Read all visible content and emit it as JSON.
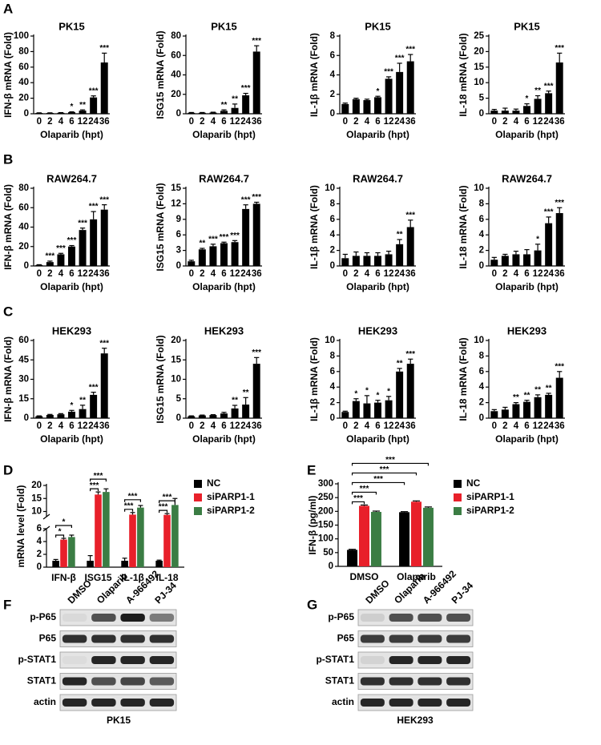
{
  "panels": [
    "A",
    "B",
    "C",
    "D",
    "E",
    "F",
    "G"
  ],
  "chart_data": [
    {
      "type": "bar",
      "title": "PK15",
      "ylabel": "IFN-β mRNA (Fold)",
      "xlabel": "Olaparib (hpt)",
      "categories": [
        "0",
        "2",
        "4",
        "6",
        "12",
        "24",
        "36"
      ],
      "values": [
        1,
        1,
        1.2,
        2,
        4,
        21,
        66
      ],
      "errors": [
        0.2,
        0.2,
        0.3,
        0.5,
        1,
        2,
        12
      ],
      "stars": [
        null,
        null,
        null,
        "*",
        "**",
        "***",
        "***"
      ],
      "color": "#000000",
      "ylim": [
        0,
        100
      ],
      "yticks": [
        0,
        20,
        40,
        60,
        80,
        100
      ]
    },
    {
      "type": "bar",
      "title": "PK15",
      "ylabel": "ISG15 mRNA (Fold)",
      "xlabel": "Olaparib (hpt)",
      "categories": [
        "0",
        "2",
        "4",
        "6",
        "12",
        "24",
        "36"
      ],
      "values": [
        1,
        1,
        1.2,
        3,
        6,
        19,
        64
      ],
      "errors": [
        0.3,
        0.3,
        0.4,
        1,
        4,
        2,
        6
      ],
      "stars": [
        null,
        null,
        null,
        "**",
        "**",
        "***",
        "***"
      ],
      "color": "#000000",
      "ylim": [
        0,
        80
      ],
      "yticks": [
        0,
        20,
        40,
        60,
        80
      ]
    },
    {
      "type": "bar",
      "title": "PK15",
      "ylabel": "IL-1β  mRNA (Fold)",
      "xlabel": "Olaparib (hpt)",
      "categories": [
        "0",
        "2",
        "4",
        "6",
        "12",
        "24",
        "36"
      ],
      "values": [
        1,
        1.5,
        1.4,
        1.7,
        3.6,
        4.3,
        5.4
      ],
      "errors": [
        0.1,
        0.1,
        0.1,
        0.1,
        0.2,
        0.9,
        0.7
      ],
      "stars": [
        null,
        null,
        null,
        "*",
        "***",
        "***",
        "***"
      ],
      "color": "#000000",
      "ylim": [
        0,
        8
      ],
      "yticks": [
        0,
        2,
        4,
        6,
        8
      ]
    },
    {
      "type": "bar",
      "title": "PK15",
      "ylabel": "IL-18 mRNA (Fold)",
      "xlabel": "Olaparib (hpt)",
      "categories": [
        "0",
        "2",
        "4",
        "6",
        "12",
        "24",
        "36"
      ],
      "values": [
        1,
        1,
        1,
        2.5,
        4.8,
        6.6,
        16.5
      ],
      "errors": [
        0.4,
        0.8,
        0.5,
        0.7,
        1,
        0.7,
        3
      ],
      "stars": [
        null,
        null,
        null,
        "*",
        "**",
        "***",
        "***"
      ],
      "color": "#000000",
      "ylim": [
        0,
        25
      ],
      "yticks": [
        0,
        5,
        10,
        15,
        20,
        25
      ]
    },
    {
      "type": "bar",
      "title": "RAW264.7",
      "ylabel": "IFN-β mRNA (Fold)",
      "xlabel": "Olaparib (hpt)",
      "categories": [
        "0",
        "2",
        "4",
        "6",
        "12",
        "24",
        "36"
      ],
      "values": [
        1,
        4,
        12,
        20,
        37,
        48,
        58
      ],
      "errors": [
        0.3,
        1,
        1,
        1,
        2,
        8,
        5
      ],
      "stars": [
        null,
        "***",
        "***",
        "***",
        "***",
        "***",
        "***"
      ],
      "color": "#000000",
      "ylim": [
        0,
        80
      ],
      "yticks": [
        0,
        20,
        40,
        60,
        80
      ]
    },
    {
      "type": "bar",
      "title": "RAW264.7",
      "ylabel": "ISG15 mRNA (Fold)",
      "xlabel": "Olaparib (hpt)",
      "categories": [
        "0",
        "2",
        "4",
        "6",
        "12",
        "24",
        "36"
      ],
      "values": [
        0.9,
        3.2,
        3.8,
        4.4,
        4.6,
        11,
        12
      ],
      "errors": [
        0.2,
        0.2,
        0.4,
        0.2,
        0.3,
        0.8,
        0.3
      ],
      "stars": [
        null,
        "**",
        "***",
        "***",
        "***",
        "***",
        "***"
      ],
      "color": "#000000",
      "ylim": [
        0,
        15
      ],
      "yticks": [
        0,
        3,
        6,
        9,
        12,
        15
      ]
    },
    {
      "type": "bar",
      "title": "RAW264.7",
      "ylabel": "IL-1β  mRNA (Fold)",
      "xlabel": "Olaparib (hpt)",
      "categories": [
        "0",
        "2",
        "4",
        "6",
        "12",
        "24",
        "36"
      ],
      "values": [
        1,
        1.3,
        1.3,
        1.3,
        1.5,
        2.8,
        5
      ],
      "errors": [
        0.5,
        0.5,
        0.4,
        0.4,
        0.4,
        0.6,
        0.9
      ],
      "stars": [
        null,
        null,
        null,
        null,
        null,
        "**",
        "***"
      ],
      "color": "#000000",
      "ylim": [
        0,
        10
      ],
      "yticks": [
        0,
        2,
        4,
        6,
        8,
        10
      ]
    },
    {
      "type": "bar",
      "title": "RAW264.7",
      "ylabel": "IL-18 mRNA (Fold)",
      "xlabel": "Olaparib (hpt)",
      "categories": [
        "0",
        "2",
        "4",
        "6",
        "12",
        "24",
        "36"
      ],
      "values": [
        0.8,
        1.3,
        1.5,
        1.5,
        2,
        5.5,
        6.8
      ],
      "errors": [
        0.3,
        0.2,
        0.4,
        0.6,
        0.8,
        0.8,
        0.7
      ],
      "stars": [
        null,
        null,
        null,
        null,
        "*",
        "***",
        "***"
      ],
      "color": "#000000",
      "ylim": [
        0,
        10
      ],
      "yticks": [
        0,
        2,
        4,
        6,
        8,
        10
      ]
    },
    {
      "type": "bar",
      "title": "HEK293",
      "ylabel": "IFN-β mRNA (Fold)",
      "xlabel": "Olaparib (hpt)",
      "categories": [
        "0",
        "2",
        "4",
        "6",
        "12",
        "24",
        "36"
      ],
      "values": [
        1.5,
        2.5,
        3,
        5,
        7,
        18,
        50
      ],
      "errors": [
        0.3,
        0.4,
        0.5,
        1,
        3,
        2,
        4
      ],
      "stars": [
        null,
        null,
        null,
        "*",
        "**",
        "***",
        "***"
      ],
      "color": "#000000",
      "ylim": [
        0,
        60
      ],
      "yticks": [
        0,
        15,
        30,
        45,
        60
      ]
    },
    {
      "type": "bar",
      "title": "HEK293",
      "ylabel": "ISG15 mRNA (Fold)",
      "xlabel": "Olaparib (hpt)",
      "categories": [
        "0",
        "2",
        "4",
        "6",
        "12",
        "24",
        "36"
      ],
      "values": [
        0.5,
        0.7,
        0.8,
        1.2,
        2.5,
        3.5,
        14
      ],
      "errors": [
        0.1,
        0.1,
        0.1,
        0.3,
        0.8,
        1.8,
        1.6
      ],
      "stars": [
        null,
        null,
        null,
        null,
        "**",
        "**",
        "***"
      ],
      "color": "#000000",
      "ylim": [
        0,
        20
      ],
      "yticks": [
        0,
        5,
        10,
        15,
        20
      ]
    },
    {
      "type": "bar",
      "title": "HEK293",
      "ylabel": "IL-1β mRNA (Fold)",
      "xlabel": "Olaparib (hpt)",
      "categories": [
        "0",
        "2",
        "4",
        "6",
        "12",
        "24",
        "36"
      ],
      "values": [
        0.8,
        2.2,
        1.9,
        2,
        2.3,
        6,
        7
      ],
      "errors": [
        0.1,
        0.3,
        1,
        0.3,
        0.5,
        0.4,
        0.6
      ],
      "stars": [
        null,
        "*",
        "*",
        "*",
        "*",
        "**",
        "***"
      ],
      "color": "#000000",
      "ylim": [
        0,
        10
      ],
      "yticks": [
        0,
        2,
        4,
        6,
        8,
        10
      ]
    },
    {
      "type": "bar",
      "title": "HEK293",
      "ylabel": "IL-18 mRNA (Fold)",
      "xlabel": "Olaparib (hpt)",
      "categories": [
        "0",
        "2",
        "4",
        "6",
        "12",
        "24",
        "36"
      ],
      "values": [
        0.9,
        1.1,
        1.8,
        2.1,
        2.7,
        3,
        5.2
      ],
      "errors": [
        0.2,
        0.3,
        0.2,
        0.2,
        0.3,
        0.2,
        0.8
      ],
      "stars": [
        null,
        null,
        "**",
        "**",
        "**",
        "**",
        "***"
      ],
      "color": "#000000",
      "ylim": [
        0,
        10
      ],
      "yticks": [
        0,
        2,
        4,
        6,
        8,
        10
      ]
    },
    {
      "type": "groupedbar",
      "ylabel": "mRNA  level (Fold)",
      "categories": [
        "IFN-β",
        "ISG15",
        "IL-1β",
        "IL-18"
      ],
      "series": [
        {
          "name": "NC",
          "color": "#000000",
          "values": [
            1,
            1,
            1,
            1
          ],
          "errors": [
            0.2,
            0.8,
            0.4,
            0.1
          ]
        },
        {
          "name": "siPARP1-1",
          "color": "#e8202a",
          "values": [
            4.3,
            16.5,
            8.8,
            8.7
          ],
          "errors": [
            0.2,
            1,
            0.8,
            0.5
          ]
        },
        {
          "name": "siPARP1-2",
          "color": "#3b7d44",
          "values": [
            4.7,
            17.5,
            11.5,
            12.5
          ],
          "errors": [
            0.3,
            1.2,
            0.8,
            2.5
          ]
        }
      ],
      "brackets": [
        {
          "from": [
            0,
            0
          ],
          "to": [
            0,
            1
          ],
          "label": "*"
        },
        {
          "from": [
            0,
            0
          ],
          "to": [
            0,
            2
          ],
          "label": "*"
        },
        {
          "from": [
            1,
            0
          ],
          "to": [
            1,
            1
          ],
          "label": "***"
        },
        {
          "from": [
            1,
            0
          ],
          "to": [
            1,
            2
          ],
          "label": "***"
        },
        {
          "from": [
            2,
            0
          ],
          "to": [
            2,
            1
          ],
          "label": "***"
        },
        {
          "from": [
            2,
            0
          ],
          "to": [
            2,
            2
          ],
          "label": "***"
        },
        {
          "from": [
            3,
            0
          ],
          "to": [
            3,
            1
          ],
          "label": "***"
        },
        {
          "from": [
            3,
            0
          ],
          "to": [
            3,
            2
          ],
          "label": "***"
        }
      ],
      "ylim": [
        0,
        20
      ],
      "ybreak": [
        6,
        8
      ],
      "yticks": [
        0,
        2,
        4,
        6,
        10,
        15,
        20
      ],
      "legend": "right"
    },
    {
      "type": "groupedbar",
      "ylabel": "IFN-β (pg/ml)",
      "categories": [
        "DMSO",
        "Olaparib"
      ],
      "series": [
        {
          "name": "NC",
          "color": "#000000",
          "values": [
            60,
            197
          ],
          "errors": [
            2,
            2
          ]
        },
        {
          "name": "siPARP1-1",
          "color": "#e8202a",
          "values": [
            220,
            235
          ],
          "errors": [
            3,
            3
          ]
        },
        {
          "name": "siPARP1-2",
          "color": "#3b7d44",
          "values": [
            198,
            213
          ],
          "errors": [
            3,
            3
          ]
        }
      ],
      "brackets": [
        {
          "from": [
            0,
            0
          ],
          "to": [
            0,
            1
          ],
          "label": "***"
        },
        {
          "from": [
            0,
            0
          ],
          "to": [
            0,
            2
          ],
          "label": "***"
        },
        {
          "from": [
            0,
            0
          ],
          "to": [
            1,
            0
          ],
          "label": "***"
        },
        {
          "from": [
            0,
            0
          ],
          "to": [
            1,
            1
          ],
          "label": "***"
        },
        {
          "from": [
            0,
            0
          ],
          "to": [
            1,
            2
          ],
          "label": "***"
        }
      ],
      "ylim": [
        0,
        300
      ],
      "yticks": [
        0,
        50,
        100,
        150,
        200,
        250,
        300
      ],
      "legend": "right"
    }
  ],
  "blots": [
    {
      "lanes": [
        "DMSO",
        "Olaparib",
        "A-966492",
        "PJ-34"
      ],
      "rows": [
        "p-P65",
        "P65",
        "p-STAT1",
        "STAT1",
        "actin"
      ],
      "cell": "PK15"
    },
    {
      "lanes": [
        "DMSO",
        "Olaparib",
        "A-966492",
        "PJ-34"
      ],
      "rows": [
        "p-P65",
        "P65",
        "p-STAT1",
        "STAT1",
        "actin"
      ],
      "cell": "HEK293"
    }
  ]
}
